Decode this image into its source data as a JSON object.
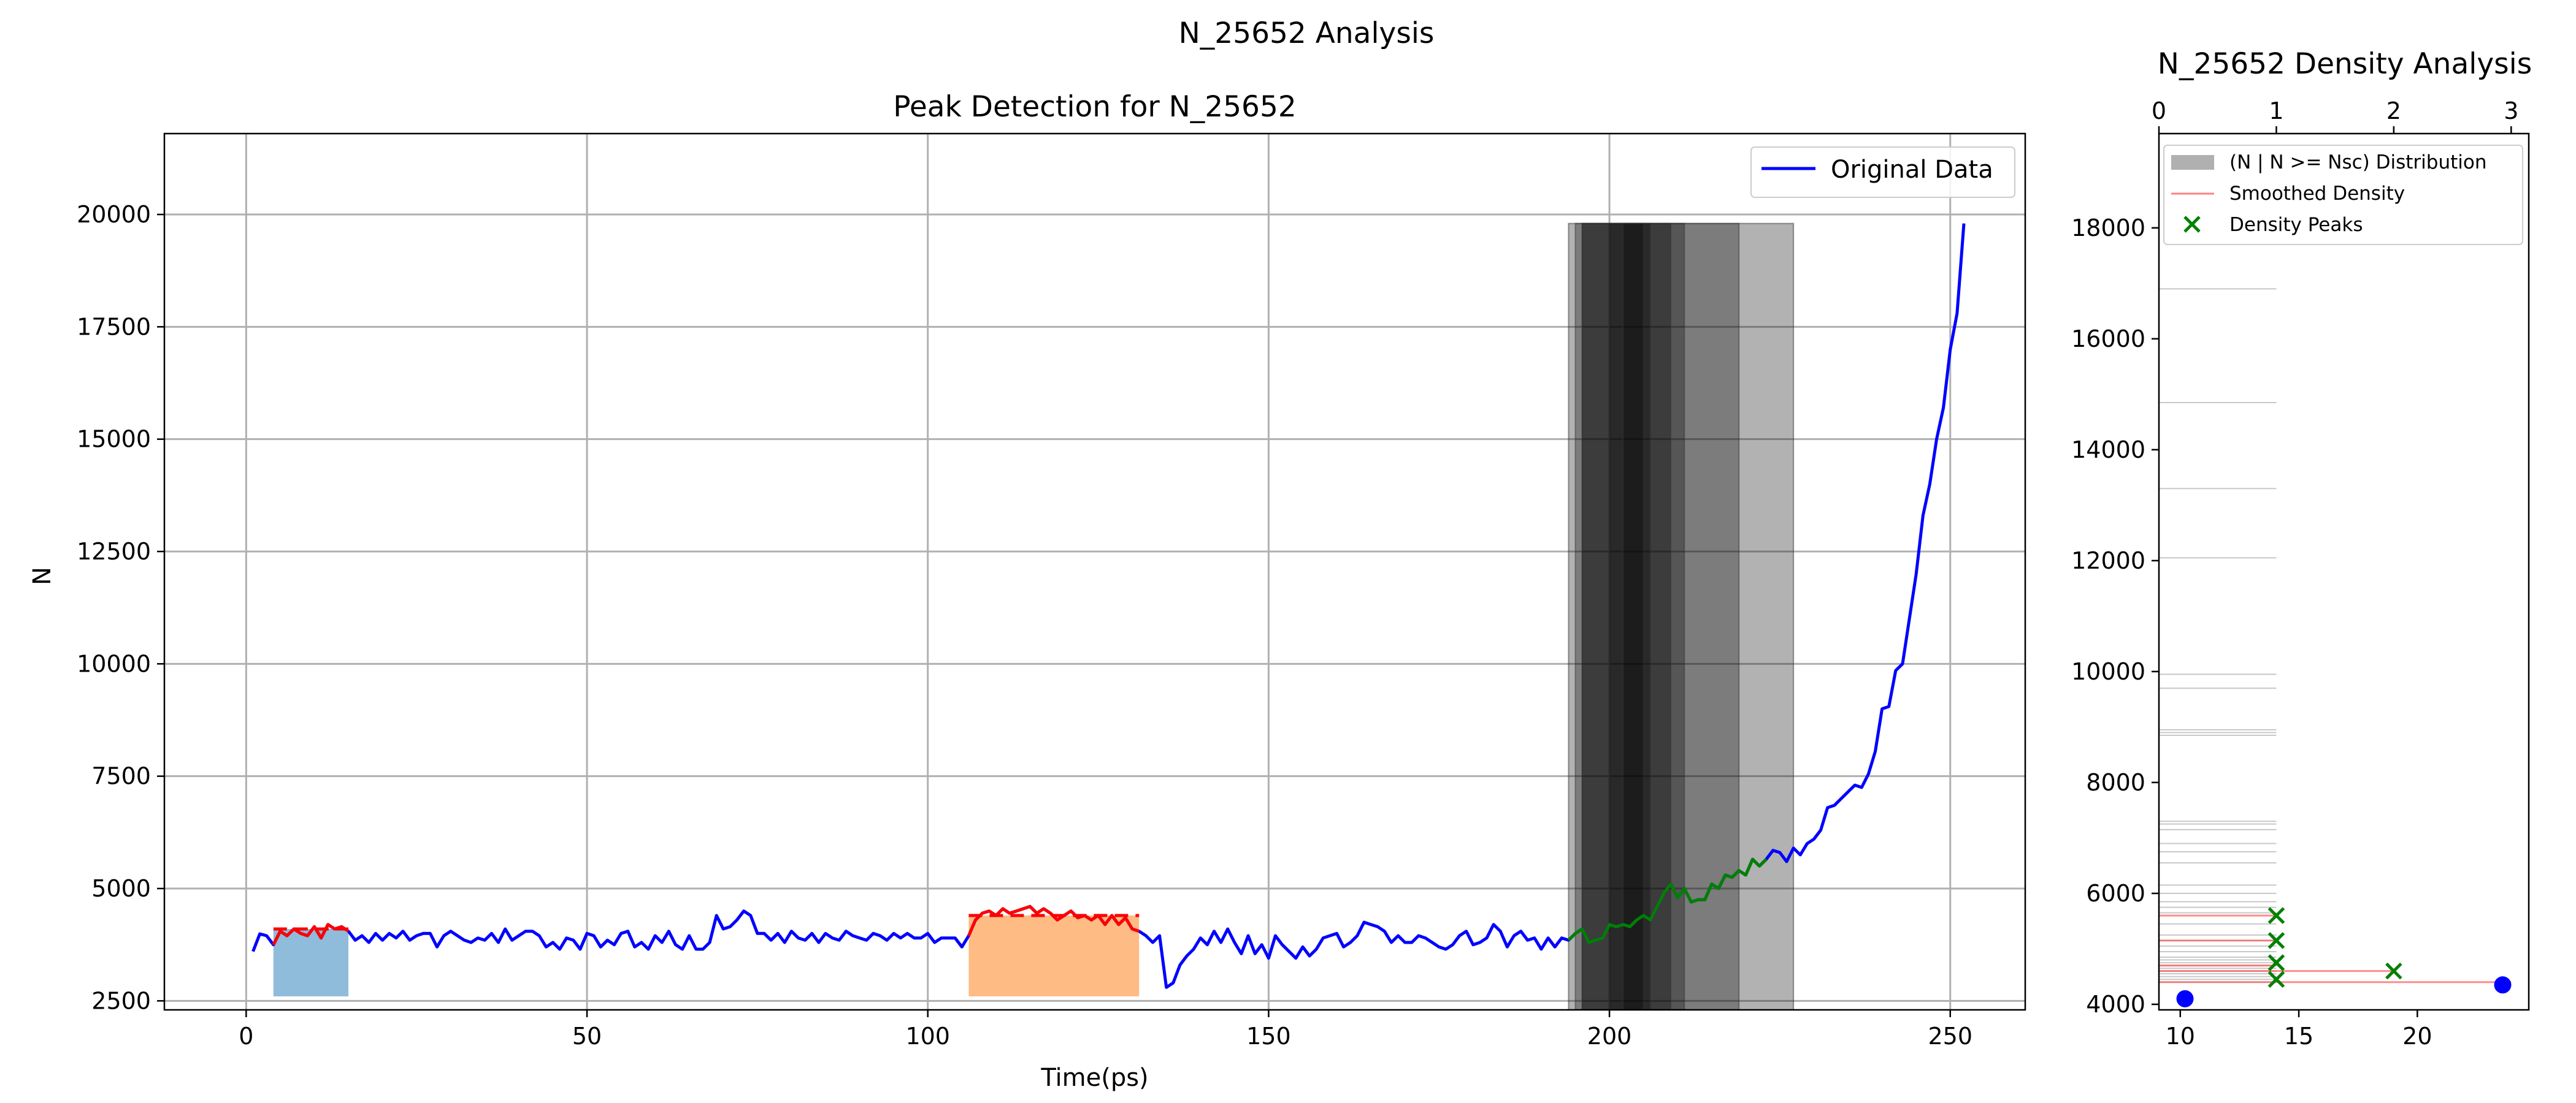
{
  "figure": {
    "suptitle": "N_25652 Analysis"
  },
  "chart_data": [
    {
      "type": "line",
      "title": "Peak Detection for N_25652",
      "xlabel": "Time(ps)",
      "ylabel": "N",
      "xlim": [
        -12,
        261
      ],
      "ylim": [
        2300,
        21800
      ],
      "xticks": [
        0,
        50,
        100,
        150,
        200,
        250
      ],
      "yticks": [
        2500,
        5000,
        7500,
        10000,
        12500,
        15000,
        17500,
        20000
      ],
      "grid": true,
      "legend": {
        "placement": "top-right",
        "entries": [
          "Original Data"
        ]
      },
      "series": [
        {
          "name": "Original Data",
          "color": "#0000ff",
          "x0": 1,
          "dx": 1,
          "values": [
            3600,
            3990,
            3950,
            3750,
            4050,
            3950,
            4100,
            4000,
            3950,
            4150,
            3900,
            4200,
            4100,
            4150,
            4050,
            3850,
            3950,
            3800,
            4000,
            3850,
            4000,
            3900,
            4050,
            3850,
            3950,
            4000,
            4000,
            3700,
            3950,
            4050,
            3950,
            3850,
            3800,
            3900,
            3850,
            4000,
            3800,
            4100,
            3850,
            3950,
            4050,
            4050,
            3950,
            3700,
            3800,
            3650,
            3900,
            3850,
            3650,
            4000,
            3950,
            3700,
            3850,
            3750,
            4000,
            4050,
            3700,
            3800,
            3650,
            3950,
            3800,
            4050,
            3750,
            3650,
            3950,
            3650,
            3650,
            3800,
            4400,
            4100,
            4150,
            4300,
            4500,
            4400,
            4000,
            4000,
            3850,
            4000,
            3800,
            4050,
            3900,
            3850,
            4000,
            3800,
            4000,
            3900,
            3850,
            4050,
            3950,
            3900,
            3850,
            4000,
            3950,
            3850,
            4000,
            3900,
            4000,
            3900,
            3900,
            4000,
            3800,
            3900,
            3900,
            3900,
            3700,
            3950,
            4300,
            4450,
            4500,
            4400,
            4550,
            4450,
            4500,
            4550,
            4600,
            4450,
            4550,
            4450,
            4300,
            4400,
            4500,
            4350,
            4400,
            4300,
            4400,
            4200,
            4400,
            4200,
            4350,
            4100,
            4050,
            3950,
            3800,
            3950,
            2800,
            2900,
            3300,
            3500,
            3650,
            3900,
            3750,
            4050,
            3800,
            4100,
            3800,
            3550,
            3950,
            3550,
            3750,
            3450,
            3950,
            3750,
            3600,
            3450,
            3700,
            3500,
            3650,
            3900,
            3950,
            4000,
            3700,
            3800,
            3950,
            4250,
            4200,
            4150,
            4050,
            3800,
            3950,
            3800,
            3800,
            3950,
            3900,
            3800,
            3700,
            3650,
            3750,
            3950,
            4050,
            3750,
            3800,
            3900,
            4200,
            4050,
            3700,
            3950,
            4050,
            3850,
            3900,
            3650,
            3900,
            3700,
            3900,
            3850,
            4000,
            4100,
            3800,
            3850,
            3900,
            4200,
            4150,
            4200,
            4150,
            4300,
            4400,
            4300,
            4600,
            4900,
            5100,
            4800,
            5000,
            4700,
            4750,
            4750,
            5100,
            5000,
            5300,
            5250,
            5400,
            5300,
            5650,
            5500,
            5650,
            5850,
            5800,
            5600,
            5900,
            5750,
            6000,
            6100,
            6300,
            6800,
            6850,
            7000,
            7150,
            7300,
            7250,
            7550,
            8050,
            9000,
            9050,
            9850,
            10000,
            11000,
            12000,
            13300,
            14000,
            15000,
            15700,
            17000,
            17800,
            19800
          ]
        }
      ],
      "highlight_region_1": {
        "x_start": 4,
        "x_end": 15,
        "y_fill_top": 4100,
        "y_fill_bottom": 2600,
        "fill_color": "#8fbcdb",
        "marker_color": "#ff0000"
      },
      "highlight_region_2": {
        "x_start": 106,
        "x_end": 131,
        "y_fill_top": 4400,
        "y_fill_bottom": 2600,
        "fill_color": "#ffbb84",
        "marker_color": "#ff0000"
      },
      "growth_segment": {
        "x_start": 194,
        "x_end": 223,
        "color": "#008000"
      },
      "gray_bars": [
        {
          "x_start": 194,
          "x_end": 227,
          "y_top": 19800,
          "opacity": 0.3
        },
        {
          "x_start": 195,
          "x_end": 219,
          "y_top": 19800,
          "opacity": 0.3
        },
        {
          "x_start": 196,
          "x_end": 211,
          "y_top": 19800,
          "opacity": 0.3
        },
        {
          "x_start": 196,
          "x_end": 209,
          "y_top": 19800,
          "opacity": 0.3
        },
        {
          "x_start": 200,
          "x_end": 206,
          "y_top": 19800,
          "opacity": 0.3
        },
        {
          "x_start": 202,
          "x_end": 205,
          "y_top": 19800,
          "opacity": 0.3
        }
      ]
    },
    {
      "type": "bar",
      "title": "N_25652 Density Analysis",
      "xlim_top": [
        0,
        3.15
      ],
      "xticks_top": [
        0,
        1,
        2,
        3
      ],
      "xlim_bottom": [
        9.1,
        24.7
      ],
      "xticks_bottom": [
        10,
        15,
        20
      ],
      "ylim": [
        3900,
        19700
      ],
      "yticks": [
        4000,
        6000,
        8000,
        10000,
        12000,
        14000,
        16000,
        18000
      ],
      "grid": false,
      "legend": {
        "placement": "top-left",
        "entries": [
          "(N | N >= Nsc) Distribution",
          "Smoothed Density",
          "Density Peaks"
        ]
      },
      "histogram_lines": [
        16900,
        14850,
        13300,
        12050,
        9950,
        9700,
        8950,
        8900,
        8850,
        7300,
        7250,
        7150,
        6900,
        6750,
        6550,
        6150,
        6000,
        5850,
        5750,
        5650,
        5450,
        5250,
        5150,
        5050,
        4950,
        4850,
        4800,
        4750,
        4700,
        4650,
        4600,
        4550,
        4500,
        4450,
        4400
      ],
      "histogram_length": 1,
      "smoothed_density": [
        {
          "y": 5600,
          "value": 1
        },
        {
          "y": 5150,
          "value": 1
        },
        {
          "y": 4700,
          "value": 1
        },
        {
          "y": 4600,
          "value": 2
        },
        {
          "y": 4400,
          "value": 3
        }
      ],
      "density_peaks": [
        {
          "y": 5600,
          "value": 1
        },
        {
          "y": 5150,
          "value": 1
        },
        {
          "y": 4750,
          "value": 1
        },
        {
          "y": 4600,
          "value": 2
        },
        {
          "y": 4450,
          "value": 1
        }
      ],
      "blue_points": [
        {
          "bottom_x": 10.2,
          "y": 4100
        },
        {
          "bottom_x": 23.6,
          "y": 4350
        }
      ]
    }
  ]
}
